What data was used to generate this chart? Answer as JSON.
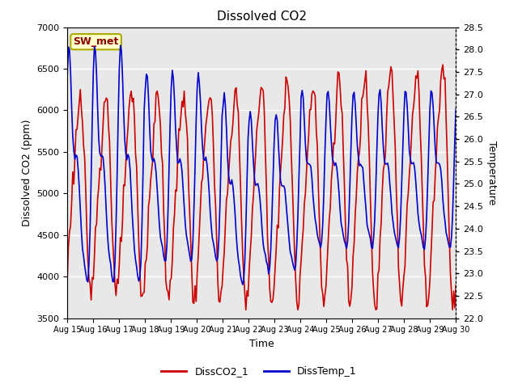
{
  "title": "Dissolved CO2",
  "xlabel": "Time",
  "ylabel_left": "Dissolved CO2 (ppm)",
  "ylabel_right": "Temperature",
  "annotation_text": "SW_met",
  "annotation_bg": "#ffffcc",
  "annotation_edge": "#aaaa00",
  "annotation_text_color": "#8b0000",
  "legend_entries": [
    "DissCO2_1",
    "DissTemp_1"
  ],
  "line_colors": [
    "#cc0000",
    "#0000cc"
  ],
  "ylim_left": [
    3500,
    7000
  ],
  "ylim_right": [
    22.0,
    28.5
  ],
  "yticks_left": [
    3500,
    4000,
    4500,
    5000,
    5500,
    6000,
    6500,
    7000
  ],
  "yticks_right": [
    22.0,
    22.5,
    23.0,
    23.5,
    24.0,
    24.5,
    25.0,
    25.5,
    26.0,
    26.5,
    27.0,
    27.5,
    28.0,
    28.5
  ],
  "xtick_labels": [
    "Aug 15",
    "Aug 16",
    "Aug 17",
    "Aug 18",
    "Aug 19",
    "Aug 20",
    "Aug 21",
    "Aug 22",
    "Aug 23",
    "Aug 24",
    "Aug 25",
    "Aug 26",
    "Aug 27",
    "Aug 28",
    "Aug 29",
    "Aug 30"
  ],
  "background_inner": "#e8e8e8",
  "background_outer": "#ffffff",
  "grid_color": "#ffffff",
  "linewidth": 1.2,
  "title_fontsize": 11,
  "label_fontsize": 9,
  "tick_fontsize": 8
}
